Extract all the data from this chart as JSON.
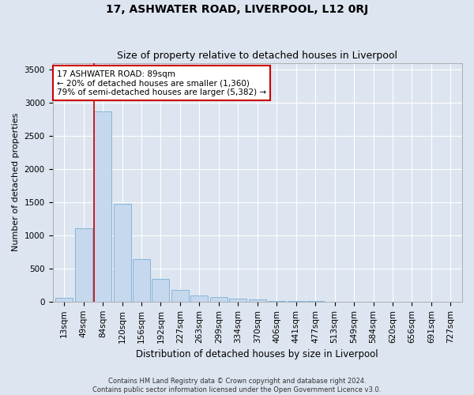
{
  "title": "17, ASHWATER ROAD, LIVERPOOL, L12 0RJ",
  "subtitle": "Size of property relative to detached houses in Liverpool",
  "xlabel": "Distribution of detached houses by size in Liverpool",
  "ylabel": "Number of detached properties",
  "footer_line1": "Contains HM Land Registry data © Crown copyright and database right 2024.",
  "footer_line2": "Contains public sector information licensed under the Open Government Licence v3.0.",
  "bar_labels": [
    "13sqm",
    "49sqm",
    "84sqm",
    "120sqm",
    "156sqm",
    "192sqm",
    "227sqm",
    "263sqm",
    "299sqm",
    "334sqm",
    "370sqm",
    "406sqm",
    "441sqm",
    "477sqm",
    "513sqm",
    "549sqm",
    "584sqm",
    "620sqm",
    "656sqm",
    "691sqm",
    "727sqm"
  ],
  "bar_values": [
    55,
    1100,
    2870,
    1480,
    640,
    340,
    175,
    95,
    65,
    45,
    35,
    15,
    10,
    5,
    0,
    0,
    0,
    0,
    0,
    0,
    0
  ],
  "bar_color": "#c5d8ed",
  "bar_edgecolor": "#7bafd4",
  "property_bin_index": 2,
  "annotation_line1": "17 ASHWATER ROAD: 89sqm",
  "annotation_line2": "← 20% of detached houses are smaller (1,360)",
  "annotation_line3": "79% of semi-detached houses are larger (5,382) →",
  "annotation_box_facecolor": "#ffffff",
  "annotation_box_edgecolor": "#cc0000",
  "vline_color": "#cc0000",
  "ylim": [
    0,
    3600
  ],
  "yticks": [
    0,
    500,
    1000,
    1500,
    2000,
    2500,
    3000,
    3500
  ],
  "background_color": "#dde5f0",
  "plot_bg_color": "#dde5f0",
  "grid_color": "#ffffff",
  "title_fontsize": 10,
  "subtitle_fontsize": 9,
  "xlabel_fontsize": 8.5,
  "ylabel_fontsize": 8,
  "tick_fontsize": 7.5,
  "annotation_fontsize": 7.5,
  "footer_fontsize": 6
}
